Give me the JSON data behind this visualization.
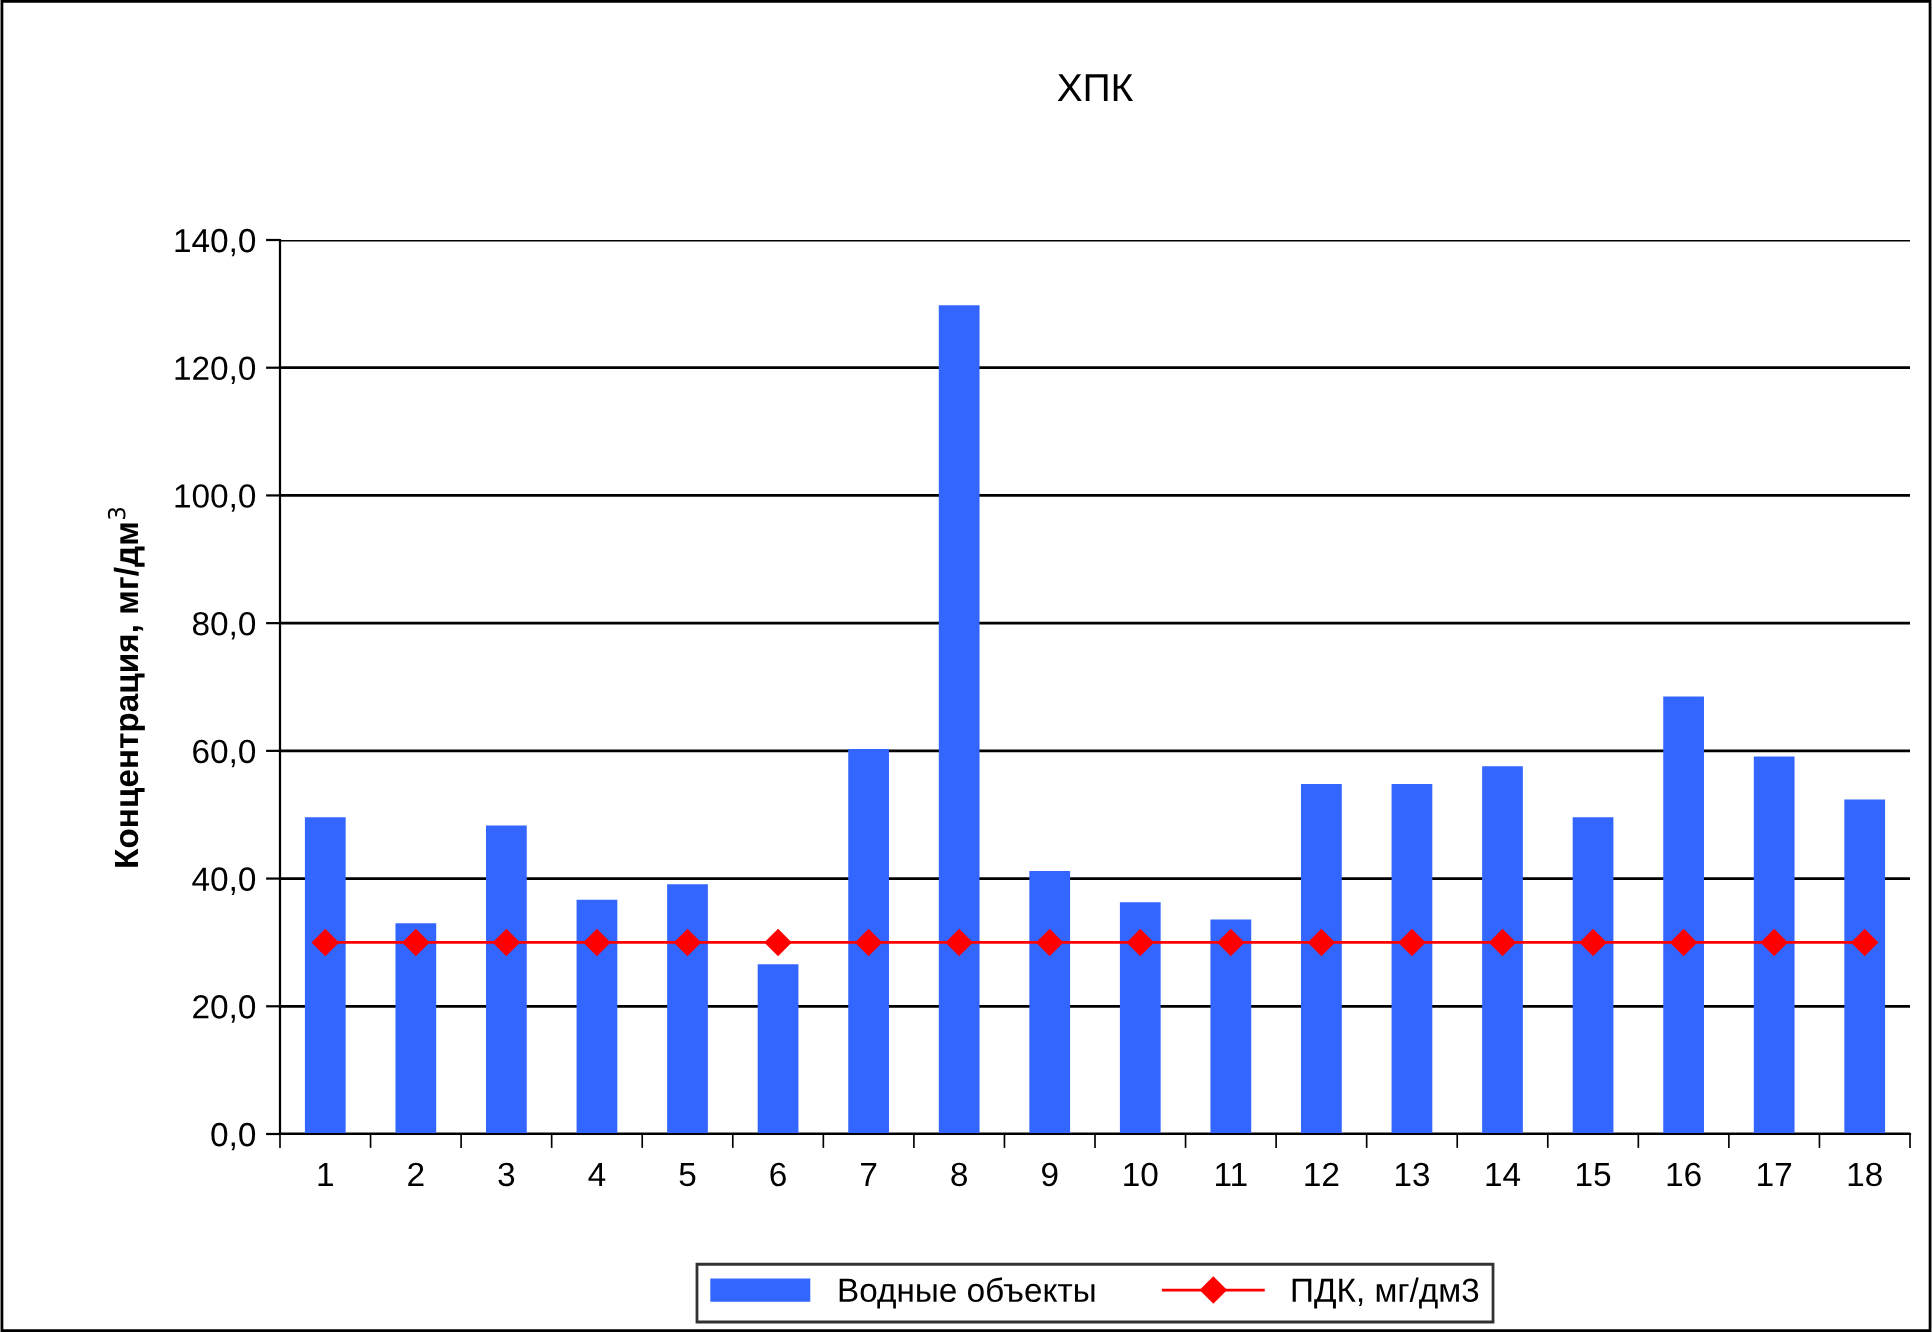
{
  "chart_data": {
    "type": "bar",
    "title": "ХПК",
    "ylabel": "Концентрация, мг/дм$^{3}$",
    "categories": [
      "1",
      "2",
      "3",
      "4",
      "5",
      "6",
      "7",
      "8",
      "9",
      "10",
      "11",
      "12",
      "13",
      "14",
      "15",
      "16",
      "17",
      "18"
    ],
    "series": [
      {
        "name": "Водные объекты",
        "color": "#3366ff",
        "values": [
          49.6,
          33.0,
          48.3,
          36.7,
          39.1,
          26.6,
          60.3,
          129.8,
          41.2,
          36.3,
          33.6,
          54.8,
          54.8,
          57.6,
          49.6,
          68.5,
          59.1,
          52.4
        ]
      },
      {
        "name": "ПДК, мг/дм3",
        "type": "line",
        "color": "#ff0000",
        "marker": "diamond",
        "values": [
          30,
          30,
          30,
          30,
          30,
          30,
          30,
          30,
          30,
          30,
          30,
          30,
          30,
          30,
          30,
          30,
          30,
          30
        ]
      }
    ],
    "ylim": [
      0,
      140
    ],
    "yticks": [
      {
        "value": 0,
        "label": "0,0"
      },
      {
        "value": 20,
        "label": "20,0"
      },
      {
        "value": 40,
        "label": "40,0"
      },
      {
        "value": 60,
        "label": "60,0"
      },
      {
        "value": 80,
        "label": "80,0"
      },
      {
        "value": 100,
        "label": "100,0"
      },
      {
        "value": 120,
        "label": "120,0"
      },
      {
        "value": 140,
        "label": "140,0"
      }
    ],
    "grid": "y",
    "legend": "bottom"
  }
}
